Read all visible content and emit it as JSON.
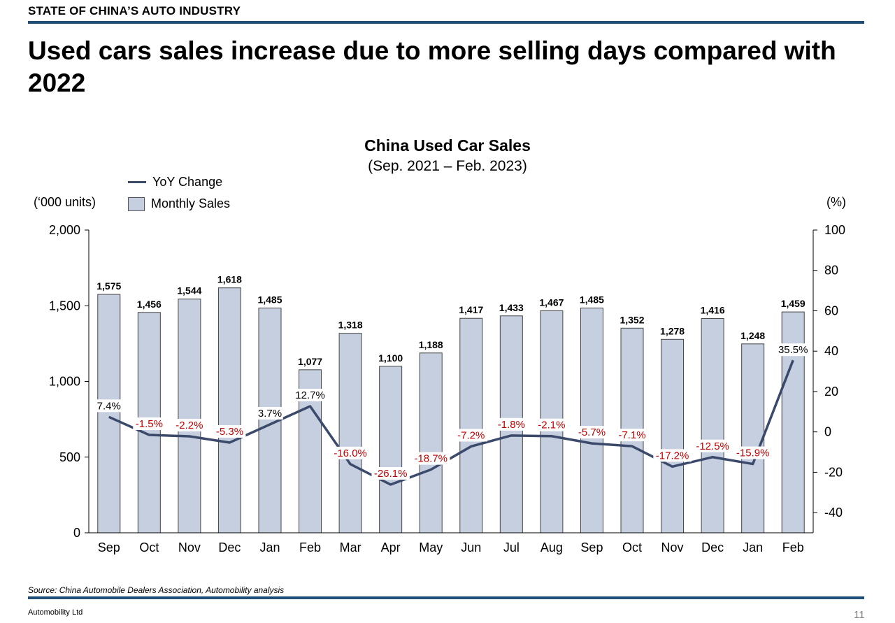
{
  "header": {
    "kicker": "STATE OF CHINA’S AUTO INDUSTRY",
    "headline": "Used cars sales increase due to more selling days compared with 2022"
  },
  "chart_data": {
    "type": "bar",
    "title": "China Used Car Sales",
    "subtitle": "(Sep. 2021 – Feb. 2023)",
    "categories": [
      "Sep",
      "Oct",
      "Nov",
      "Dec",
      "Jan",
      "Feb",
      "Mar",
      "Apr",
      "May",
      "Jun",
      "Jul",
      "Aug",
      "Sep",
      "Oct",
      "Nov",
      "Dec",
      "Jan",
      "Feb"
    ],
    "series": [
      {
        "name": "Monthly Sales",
        "type": "bar",
        "axis": "left",
        "values": [
          1575,
          1456,
          1544,
          1618,
          1485,
          1077,
          1318,
          1100,
          1188,
          1417,
          1433,
          1467,
          1485,
          1352,
          1278,
          1416,
          1248,
          1459
        ],
        "labels": [
          "1,575",
          "1,456",
          "1,544",
          "1,618",
          "1,485",
          "1,077",
          "1,318",
          "1,100",
          "1,188",
          "1,417",
          "1,433",
          "1,467",
          "1,485",
          "1,352",
          "1,278",
          "1,416",
          "1,248",
          "1,459"
        ]
      },
      {
        "name": "YoY Change",
        "type": "line",
        "axis": "right",
        "values": [
          7.4,
          -1.5,
          -2.2,
          -5.3,
          3.7,
          12.7,
          -16.0,
          -26.1,
          -18.7,
          -7.2,
          -1.8,
          -2.1,
          -5.7,
          -7.1,
          -17.2,
          -12.5,
          -15.9,
          35.5
        ],
        "labels": [
          "7.4%",
          "-1.5%",
          "-2.2%",
          "-5.3%",
          "3.7%",
          "12.7%",
          "-16.0%",
          "-26.1%",
          "-18.7%",
          "-7.2%",
          "-1.8%",
          "-2.1%",
          "-5.7%",
          "-7.1%",
          "-17.2%",
          "-12.5%",
          "-15.9%",
          "35.5%"
        ]
      }
    ],
    "ylabel": "(‘000 units)",
    "ylim": [
      0,
      2000
    ],
    "yticks": [
      "0",
      "500",
      "1,000",
      "1,500",
      "2,000"
    ],
    "y2label": "(%)",
    "y2lim": [
      -50,
      100
    ],
    "y2ticks": [
      "-40",
      "-20",
      "0",
      "20",
      "40",
      "60",
      "80",
      "100"
    ],
    "grid": false,
    "legend_position": "top-left",
    "colors": {
      "bar_fill": "#c5cfe0",
      "bar_stroke": "#444444",
      "line": "#3b4a6b",
      "label_positive": "#000000",
      "label_negative": "#c00000"
    }
  },
  "footer": {
    "source": "Source: China Automobile Dealers Association, Automobility analysis",
    "company": "Automobility Ltd",
    "page": "11"
  }
}
